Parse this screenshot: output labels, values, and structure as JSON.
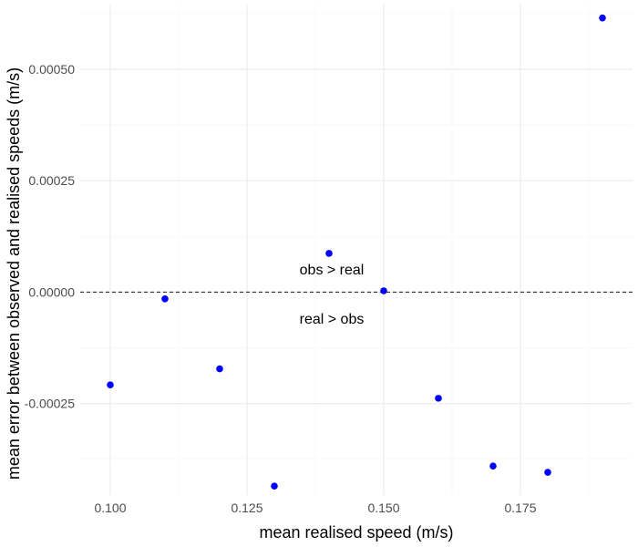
{
  "chart_data": {
    "type": "scatter",
    "title": "",
    "xlabel": "mean realised speed (m/s)",
    "ylabel": "mean error between observed and realised speeds (m/s)",
    "xlim": [
      0.0945,
      0.1955
    ],
    "ylim": [
      -0.000455,
      0.000645
    ],
    "x_ticks": [
      0.1,
      0.125,
      0.15,
      0.175
    ],
    "x_tick_labels": [
      "0.100",
      "0.125",
      "0.150",
      "0.175"
    ],
    "y_ticks": [
      -0.00025,
      0.0,
      0.00025,
      0.0005
    ],
    "y_tick_labels": [
      "-0.00025",
      "0.00000",
      "0.00025",
      "0.00050"
    ],
    "grid": true,
    "point_color": "#0000ff",
    "reference_line": {
      "y": 0.0,
      "style": "dashed",
      "color": "#333333"
    },
    "annotations": [
      {
        "text": "obs > real",
        "x": 0.1405,
        "y": 5e-05
      },
      {
        "text": "real > obs",
        "x": 0.1405,
        "y": -6e-05
      }
    ],
    "points": [
      {
        "x": 0.1,
        "y": -0.000208
      },
      {
        "x": 0.11,
        "y": -1.5e-05
      },
      {
        "x": 0.12,
        "y": -0.000172
      },
      {
        "x": 0.13,
        "y": -0.000435
      },
      {
        "x": 0.14,
        "y": 8.7e-05
      },
      {
        "x": 0.15,
        "y": 3e-06
      },
      {
        "x": 0.16,
        "y": -0.000238
      },
      {
        "x": 0.17,
        "y": -0.00039
      },
      {
        "x": 0.18,
        "y": -0.000404
      },
      {
        "x": 0.19,
        "y": 0.000615
      }
    ]
  }
}
